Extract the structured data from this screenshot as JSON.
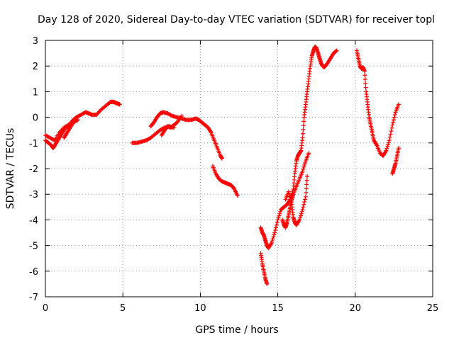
{
  "chart_data": {
    "type": "scatter",
    "title": "Day 128 of 2020, Sidereal Day-to-day VTEC variation (SDTVAR) for receiver topl",
    "xlabel": "GPS time / hours",
    "ylabel": "SDTVAR / TECUs",
    "xlim": [
      0,
      25
    ],
    "ylim": [
      -7,
      3
    ],
    "xticks": [
      0,
      5,
      10,
      15,
      20,
      25
    ],
    "yticks": [
      -7,
      -6,
      -5,
      -4,
      -3,
      -2,
      -1,
      0,
      1,
      2,
      3
    ],
    "grid": true,
    "marker": "+",
    "color": "#ff0000",
    "series": [
      {
        "name": "trace-1",
        "x": [
          0.0,
          0.2,
          0.4,
          0.5,
          0.6,
          0.8,
          1.0,
          1.2,
          1.5,
          1.8,
          2.0,
          2.3,
          2.6,
          2.8,
          3.0,
          3.3,
          3.6,
          3.9,
          4.2,
          4.4,
          4.6,
          4.8
        ],
        "y": [
          -0.9,
          -1.0,
          -1.1,
          -1.2,
          -1.1,
          -0.9,
          -0.7,
          -0.5,
          -0.3,
          -0.1,
          0.0,
          0.1,
          0.2,
          0.15,
          0.1,
          0.1,
          0.3,
          0.45,
          0.6,
          0.6,
          0.55,
          0.5
        ]
      },
      {
        "name": "trace-2",
        "x": [
          0.0,
          0.3,
          0.6,
          0.9,
          1.2,
          1.5,
          1.8,
          2.1
        ],
        "y": [
          -0.7,
          -0.8,
          -0.9,
          -0.6,
          -0.4,
          -0.3,
          -0.2,
          -0.1
        ]
      },
      {
        "name": "trace-3",
        "x": [
          1.2,
          1.4,
          1.6,
          1.8
        ],
        "y": [
          -0.8,
          -0.6,
          -0.4,
          -0.2
        ]
      },
      {
        "name": "trace-4",
        "x": [
          5.6,
          5.9,
          6.2,
          6.5,
          6.8,
          7.1,
          7.4,
          7.7,
          8.0,
          8.3
        ],
        "y": [
          -1.0,
          -1.0,
          -0.95,
          -0.9,
          -0.8,
          -0.65,
          -0.5,
          -0.4,
          -0.35,
          -0.4
        ]
      },
      {
        "name": "trace-5",
        "x": [
          6.8,
          7.0,
          7.2,
          7.4,
          7.6,
          7.9,
          8.2,
          8.5,
          8.8,
          9.1,
          9.4,
          9.7,
          9.9,
          10.1,
          10.3,
          10.5,
          10.7,
          10.9,
          11.1,
          11.3,
          11.4
        ],
        "y": [
          -0.35,
          -0.2,
          0.0,
          0.15,
          0.2,
          0.15,
          0.05,
          0.0,
          -0.05,
          -0.1,
          -0.1,
          -0.05,
          -0.1,
          -0.2,
          -0.3,
          -0.4,
          -0.6,
          -0.9,
          -1.2,
          -1.5,
          -1.6
        ]
      },
      {
        "name": "trace-6",
        "x": [
          7.5,
          7.7,
          7.9,
          8.1,
          8.3,
          8.5,
          8.8
        ],
        "y": [
          -0.7,
          -0.5,
          -0.35,
          -0.4,
          -0.3,
          -0.2,
          0.05
        ]
      },
      {
        "name": "trace-7",
        "x": [
          10.8,
          11.0,
          11.2,
          11.4,
          11.6,
          11.8,
          12.0,
          12.2,
          12.4
        ],
        "y": [
          -1.9,
          -2.2,
          -2.4,
          -2.5,
          -2.55,
          -2.6,
          -2.65,
          -2.8,
          -3.05
        ]
      },
      {
        "name": "trace-8",
        "x": [
          13.9,
          14.0,
          14.1,
          14.2,
          14.3,
          14.4,
          14.6,
          14.8,
          15.0,
          15.2,
          15.4,
          15.6,
          15.8,
          16.0,
          16.1,
          16.2,
          16.3,
          16.4,
          16.5,
          16.6,
          16.7,
          16.8,
          16.9,
          17.0,
          17.1,
          17.2,
          17.3,
          17.4,
          17.5,
          17.6,
          17.7,
          17.8,
          17.9,
          18.0,
          18.2,
          18.4,
          18.6,
          18.8
        ],
        "y": [
          -4.3,
          -4.5,
          -4.6,
          -4.8,
          -5.0,
          -5.1,
          -4.9,
          -4.5,
          -4.0,
          -3.6,
          -3.5,
          -3.4,
          -3.2,
          -2.8,
          -2.2,
          -1.7,
          -1.5,
          -1.4,
          -1.3,
          -0.8,
          0.0,
          0.5,
          1.0,
          1.5,
          2.0,
          2.4,
          2.6,
          2.75,
          2.7,
          2.5,
          2.3,
          2.1,
          2.0,
          1.95,
          2.1,
          2.3,
          2.5,
          2.6
        ]
      },
      {
        "name": "trace-9",
        "x": [
          13.9,
          14.0,
          14.1,
          14.2,
          14.3
        ],
        "y": [
          -5.3,
          -5.7,
          -6.0,
          -6.3,
          -6.5
        ]
      },
      {
        "name": "trace-10",
        "x": [
          15.3,
          15.4,
          15.5,
          15.6,
          15.7,
          15.8,
          15.9,
          16.0,
          16.2,
          16.4,
          16.6,
          16.8,
          17.0
        ],
        "y": [
          -4.0,
          -4.2,
          -4.3,
          -4.1,
          -3.8,
          -3.5,
          -3.2,
          -3.0,
          -2.7,
          -2.4,
          -2.1,
          -1.7,
          -1.4
        ]
      },
      {
        "name": "trace-11",
        "x": [
          15.5,
          15.7,
          15.9,
          16.0,
          16.1,
          16.2,
          16.4,
          16.6,
          16.8,
          16.9
        ],
        "y": [
          -3.2,
          -2.9,
          -3.4,
          -3.9,
          -4.1,
          -4.2,
          -4.0,
          -3.6,
          -3.1,
          -2.3
        ]
      },
      {
        "name": "trace-12",
        "x": [
          20.1,
          20.2,
          20.3,
          20.4,
          20.5,
          20.6,
          20.7,
          20.8,
          20.9,
          21.0,
          21.1,
          21.2,
          21.4,
          21.6,
          21.8,
          22.0,
          22.2,
          22.4,
          22.6,
          22.8
        ],
        "y": [
          2.6,
          2.3,
          2.0,
          1.9,
          1.95,
          1.8,
          1.0,
          0.5,
          0.0,
          -0.3,
          -0.6,
          -0.9,
          -1.1,
          -1.4,
          -1.5,
          -1.3,
          -0.9,
          -0.3,
          0.2,
          0.5
        ]
      },
      {
        "name": "trace-13",
        "x": [
          22.4,
          22.5,
          22.6,
          22.7,
          22.8
        ],
        "y": [
          -2.2,
          -2.0,
          -1.8,
          -1.5,
          -1.2
        ]
      }
    ]
  }
}
